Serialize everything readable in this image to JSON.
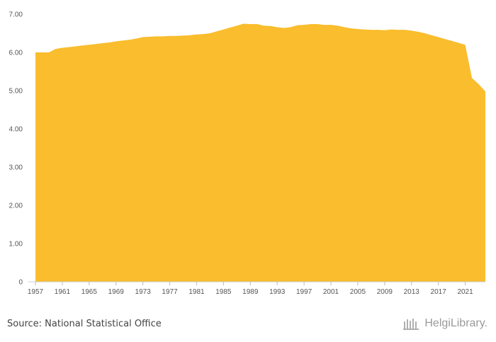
{
  "chart_data": {
    "type": "area",
    "color": "#F9BD2D",
    "x": [
      1957,
      1958,
      1959,
      1960,
      1961,
      1962,
      1963,
      1964,
      1965,
      1966,
      1967,
      1968,
      1969,
      1970,
      1971,
      1972,
      1973,
      1974,
      1975,
      1976,
      1977,
      1978,
      1979,
      1980,
      1981,
      1982,
      1983,
      1984,
      1985,
      1986,
      1987,
      1988,
      1989,
      1990,
      1991,
      1992,
      1993,
      1994,
      1995,
      1996,
      1997,
      1998,
      1999,
      2000,
      2001,
      2002,
      2003,
      2004,
      2005,
      2006,
      2007,
      2008,
      2009,
      2010,
      2011,
      2012,
      2013,
      2014,
      2015,
      2016,
      2017,
      2018,
      2019,
      2020,
      2021,
      2022,
      2023,
      2024
    ],
    "values": [
      6.0,
      6.0,
      6.0,
      6.09,
      6.12,
      6.14,
      6.16,
      6.18,
      6.2,
      6.22,
      6.24,
      6.26,
      6.29,
      6.31,
      6.33,
      6.36,
      6.4,
      6.41,
      6.42,
      6.42,
      6.43,
      6.43,
      6.44,
      6.45,
      6.47,
      6.48,
      6.5,
      6.55,
      6.6,
      6.65,
      6.7,
      6.75,
      6.74,
      6.74,
      6.7,
      6.69,
      6.66,
      6.64,
      6.66,
      6.71,
      6.72,
      6.74,
      6.74,
      6.72,
      6.72,
      6.7,
      6.66,
      6.63,
      6.61,
      6.6,
      6.59,
      6.59,
      6.58,
      6.6,
      6.59,
      6.59,
      6.57,
      6.54,
      6.5,
      6.45,
      6.4,
      6.35,
      6.3,
      6.25,
      6.2,
      5.33,
      5.17,
      4.98
    ],
    "x_ticks": [
      "1957",
      "1961",
      "1965",
      "1969",
      "1973",
      "1977",
      "1981",
      "1985",
      "1989",
      "1993",
      "1997",
      "2001",
      "2005",
      "2009",
      "2013",
      "2017",
      "2021"
    ],
    "y_ticks": [
      "0",
      "1.00",
      "2.00",
      "3.00",
      "4.00",
      "5.00",
      "6.00",
      "7.00"
    ],
    "ylim": [
      0,
      7
    ],
    "xlim": [
      1957,
      2024
    ],
    "grid": false,
    "title": "",
    "xlabel": "",
    "ylabel": ""
  },
  "footer": {
    "source": "Source: National Statistical Office",
    "logo_text": "HelgiLibrary."
  }
}
